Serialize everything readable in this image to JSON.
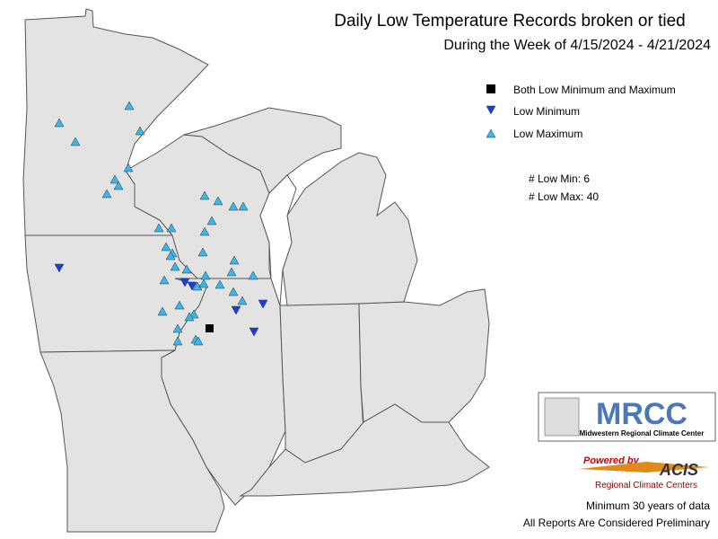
{
  "header": {
    "title": "Daily Low Temperature Records broken or tied",
    "subtitle": "During the Week of 4/15/2024 - 4/21/2024"
  },
  "legend": {
    "entries": [
      "Both Low Minimum and Maximum",
      "Low Minimum",
      "Low Maximum"
    ]
  },
  "counts": {
    "low_min": "# Low Min: 6",
    "low_max": "# Low Max: 40"
  },
  "logo": {
    "name": "MRCC",
    "full_name": "Midwestern Regional Climate Center"
  },
  "acis": {
    "powered": "Powered by",
    "name": "ACIS",
    "full_name": "Regional Climate Centers"
  },
  "notes": [
    "Minimum 30 years of data",
    "All Reports Are Considered Preliminary"
  ]
}
